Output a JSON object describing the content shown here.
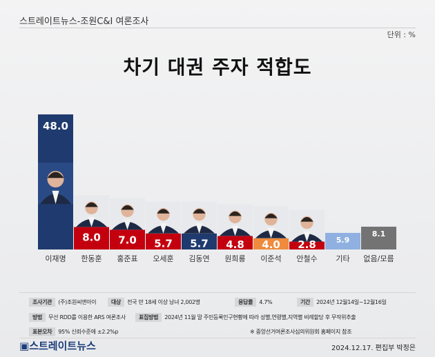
{
  "header": {
    "source": "스트레이트뉴스-조원C&I 여론조사",
    "unit": "단위 : %"
  },
  "chart_data": {
    "type": "bar",
    "title": "차기 대권 주자  적합도",
    "categories": [
      "이재명",
      "한동훈",
      "홍준표",
      "오세훈",
      "김동연",
      "원희룡",
      "이준석",
      "안철수",
      "기타",
      "없음/모름"
    ],
    "values": [
      48.0,
      8.0,
      7.0,
      5.7,
      5.7,
      4.8,
      4.0,
      2.8,
      5.9,
      8.1
    ],
    "colors": [
      "#1f3a6e",
      "#c4000f",
      "#c4000f",
      "#c4000f",
      "#1f3a6e",
      "#c4000f",
      "#f08a3c",
      "#c4000f",
      "#8fb0e0",
      "#737373"
    ],
    "photos": [
      true,
      true,
      true,
      true,
      true,
      true,
      true,
      true,
      false,
      false
    ],
    "ylim": [
      0,
      48
    ]
  },
  "footer": {
    "rows": [
      [
        {
          "tag": "조사기관",
          "text": "(주)조원씨앤아이"
        },
        {
          "tag": "대상",
          "text": "전국 만 18세 이상 남녀 2,002명"
        },
        {
          "tag": "응답률",
          "text": "4.7%"
        },
        {
          "tag": "기간",
          "text": "2024년 12월14일~12월16일"
        }
      ],
      [
        {
          "tag": "방법",
          "text": "무선 RDD를 이용한 ARS 여론조사"
        },
        {
          "tag": "표집방법",
          "text": "2024년 11월 말 주민등록인구현황에 따라 성별,연령별,지역별 비례할당 후 무작위추출"
        }
      ],
      [
        {
          "tag": "표본오차",
          "text": "95% 신뢰수준에 ±2.2%p"
        }
      ]
    ],
    "note": "※ 중앙선거여론조사심의위원회 홈페이지 참조",
    "logo": "스트레이트뉴스",
    "date": "2024.12.17. 편집부 박정은"
  }
}
